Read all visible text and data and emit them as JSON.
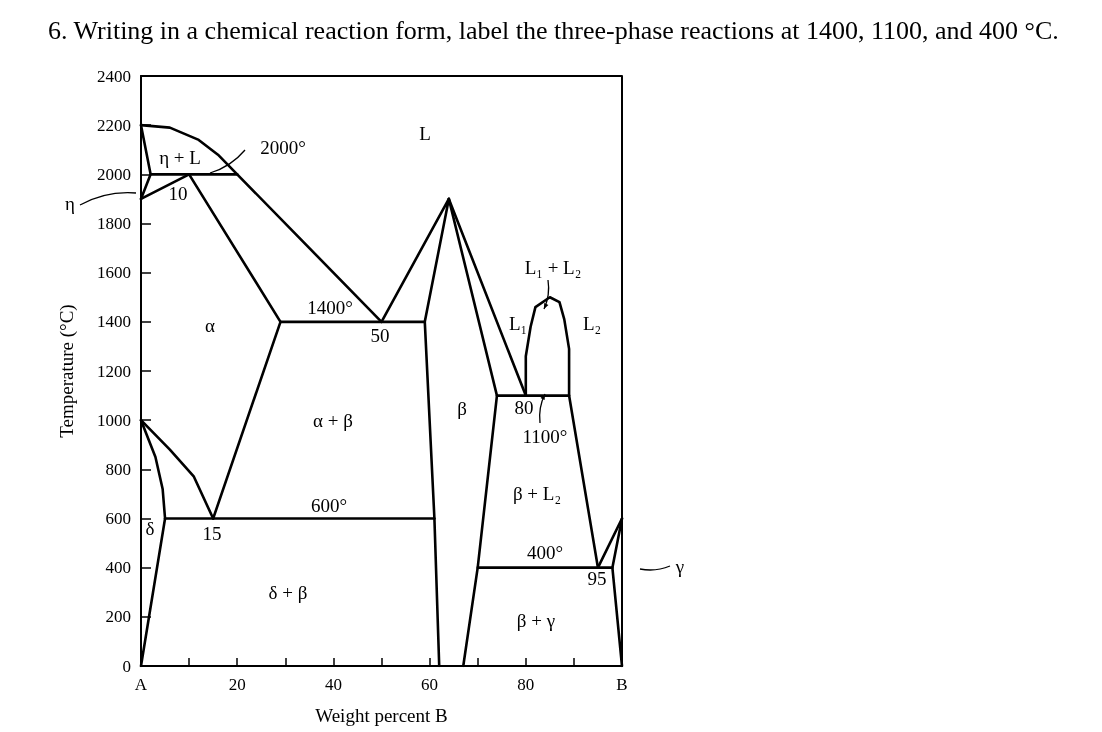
{
  "chart_data": {
    "type": "line",
    "title": "6. Writing in a chemical reaction form, label the three-phase reactions at 1400, 1100, and 400 °C.",
    "xlabel": "Weight percent B",
    "ylabel": "Temperature (°C)",
    "xlim": [
      0,
      100
    ],
    "ylim": [
      0,
      2400
    ],
    "xticks": [
      {
        "value": 0,
        "label": "A"
      },
      {
        "value": 10,
        "label": null
      },
      20,
      {
        "value": 30,
        "label": null
      },
      40,
      {
        "value": 50,
        "label": null
      },
      60,
      {
        "value": 70,
        "label": null
      },
      80,
      {
        "value": 90,
        "label": null
      },
      {
        "value": 100,
        "label": "B"
      }
    ],
    "yticks": [
      0,
      200,
      400,
      600,
      800,
      1000,
      1200,
      1400,
      1600,
      1800,
      2000,
      2200,
      2400
    ],
    "grid": false,
    "marker": "none",
    "line_style": "solid",
    "series": [
      {
        "color": "#000000",
        "x": [
          0,
          6,
          12,
          16,
          20,
          50
        ],
        "values": [
          2200,
          2190,
          2140,
          2080,
          2000,
          1400
        ]
      },
      {
        "color": "#000000",
        "x": [
          0,
          2,
          0
        ],
        "values": [
          2200,
          2000,
          1900
        ]
      },
      {
        "color": "#000000",
        "x": [
          0,
          10
        ],
        "values": [
          1900,
          2000
        ]
      },
      {
        "color": "#000000",
        "x": [
          2,
          20
        ],
        "values": [
          2000,
          2000
        ]
      },
      {
        "color": "#000000",
        "x": [
          10,
          29,
          15
        ],
        "values": [
          2000,
          1400,
          600
        ]
      },
      {
        "color": "#000000",
        "x": [
          29,
          59
        ],
        "values": [
          1400,
          1400
        ]
      },
      {
        "color": "#000000",
        "x": [
          50,
          64,
          59,
          61,
          62
        ],
        "values": [
          1400,
          1900,
          1400,
          600,
          0
        ]
      },
      {
        "color": "#000000",
        "x": [
          64,
          74,
          70,
          67
        ],
        "values": [
          1900,
          1100,
          400,
          0
        ]
      },
      {
        "color": "#000000",
        "x": [
          64,
          80
        ],
        "values": [
          1900,
          1100
        ]
      },
      {
        "color": "#000000",
        "x": [
          74,
          89
        ],
        "values": [
          1100,
          1100
        ]
      },
      {
        "color": "#000000",
        "x": [
          80,
          80,
          81,
          82,
          85,
          87,
          88,
          89,
          89,
          95
        ],
        "values": [
          1100,
          1260,
          1380,
          1460,
          1500,
          1480,
          1410,
          1290,
          1100,
          400
        ]
      },
      {
        "color": "#000000",
        "x": [
          95,
          100
        ],
        "values": [
          400,
          600
        ]
      },
      {
        "color": "#000000",
        "x": [
          70,
          98
        ],
        "values": [
          400,
          400
        ]
      },
      {
        "color": "#000000",
        "x": [
          100,
          98,
          100
        ],
        "values": [
          600,
          400,
          0
        ]
      },
      {
        "color": "#000000",
        "x": [
          0,
          3,
          4.5,
          5,
          0
        ],
        "values": [
          1000,
          850,
          720,
          600,
          0
        ]
      },
      {
        "color": "#000000",
        "x": [
          0,
          6,
          11,
          15
        ],
        "values": [
          1000,
          880,
          770,
          600
        ]
      },
      {
        "color": "#000000",
        "x": [
          5,
          61
        ],
        "values": [
          600,
          600
        ]
      }
    ],
    "annotations": [
      "η + L",
      "η",
      "10",
      "2000°",
      "L",
      "1400°",
      "50",
      "α",
      "α + β",
      "β",
      "L₁ + L₂",
      "L₁",
      "L₂",
      "80",
      "1100°",
      "β + L₂",
      "600°",
      "15",
      "δ",
      "400°",
      "95",
      "δ + β",
      "β + γ",
      "γ"
    ]
  }
}
